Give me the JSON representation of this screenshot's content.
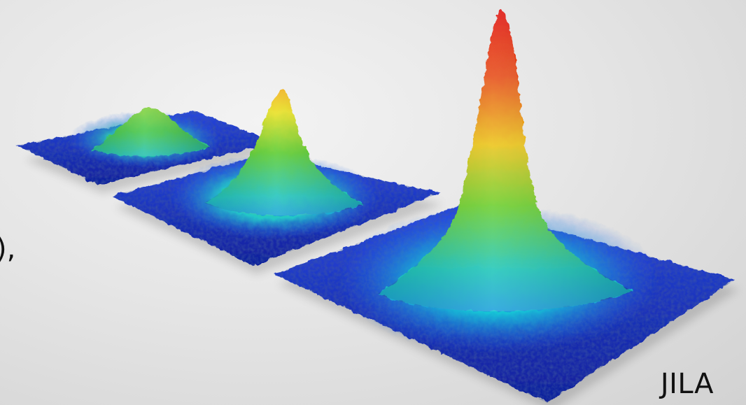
{
  "edge_fragment": "),",
  "credit": "JILA",
  "colors": {
    "background": "#dedede",
    "low": "#1830c8",
    "mid_low": "#18b8d8",
    "mid": "#38c838",
    "mid_high": "#e8e020",
    "high": "#e01010"
  }
}
